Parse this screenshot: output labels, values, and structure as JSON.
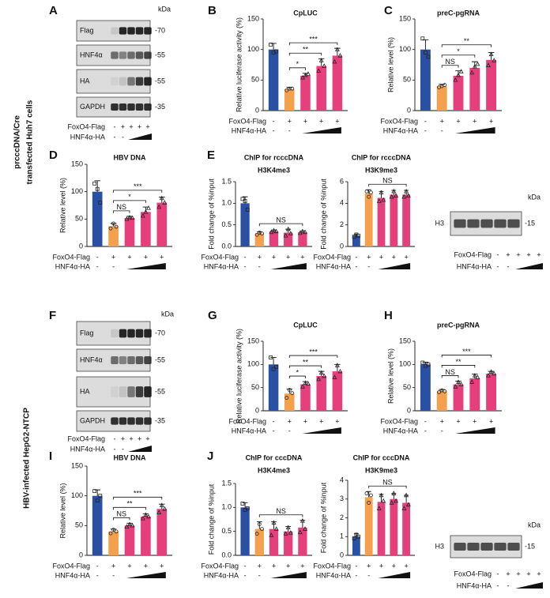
{
  "side_labels": [
    [
      "prcccDNA/Cre",
      "transfected Huh7 cells"
    ],
    [
      "HBV-infected HepG2-NTCP"
    ]
  ],
  "blots": [
    {
      "label": "A",
      "kda": "kDa",
      "bands": [
        {
          "name": "Flag",
          "marker": "-70"
        },
        {
          "name": "HNF4α",
          "marker": "-55"
        },
        {
          "name": "HA",
          "marker": "-55"
        },
        {
          "name": "GAPDH",
          "marker": "-35"
        }
      ],
      "conditions": [
        {
          "name": "FoxO4-Flag",
          "signs": [
            "-",
            "+",
            "+",
            "+",
            "+"
          ]
        },
        {
          "name": "HNF4α-HA",
          "signs": [
            "-",
            "-"
          ]
        }
      ]
    },
    {
      "kda": "kDa",
      "bands": [
        {
          "name": "H3",
          "marker": "-15"
        }
      ],
      "conditions": [
        {
          "name": "FoxO4-Flag",
          "signs": [
            "-",
            "+",
            "+",
            "+",
            "+"
          ]
        },
        {
          "name": "HNF4α-HA",
          "signs": [
            "-",
            "-"
          ]
        }
      ]
    },
    {
      "label": "F",
      "kda": "kDa",
      "bands": [
        {
          "name": "Flag",
          "marker": "-70"
        },
        {
          "name": "HNF4α",
          "marker": "-55"
        },
        {
          "name": "HA",
          "marker": "-55"
        },
        {
          "name": "GAPDH",
          "marker": "-35"
        }
      ],
      "conditions": [
        {
          "name": "FoxO4-Flag",
          "signs": [
            "-",
            "+",
            "+",
            "+",
            "+"
          ]
        },
        {
          "name": "HNF4α-HA",
          "signs": [
            "-",
            "-"
          ]
        }
      ]
    },
    {
      "kda": "kDa",
      "bands": [
        {
          "name": "H3",
          "marker": "-15"
        }
      ],
      "conditions": [
        {
          "name": "FoxO4-Flag",
          "signs": [
            "-",
            "+",
            "+",
            "+",
            "+"
          ]
        },
        {
          "name": "HNF4α-HA",
          "signs": [
            "-",
            "-"
          ]
        }
      ]
    }
  ],
  "chart_data": [
    {
      "type": "bar",
      "label": "B",
      "title": "CpLUC",
      "ylabel": "Relative luciferase activity (%)",
      "ylim": [
        0,
        150
      ],
      "yticks": [
        0,
        50,
        100,
        150
      ],
      "values": [
        100,
        35,
        57,
        73,
        90
      ],
      "errors": [
        10,
        3,
        4,
        12,
        12
      ],
      "points": [
        [
          108,
          95,
          97
        ],
        [
          33,
          36,
          36
        ],
        [
          54,
          58,
          60
        ],
        [
          65,
          82,
          73
        ],
        [
          80,
          100,
          90
        ]
      ],
      "colors": [
        "#2a50a3",
        "#f4a04c",
        "#e6407c",
        "#e6407c",
        "#e6407c"
      ],
      "conditions": [
        {
          "name": "FoxO4-Flag",
          "signs": [
            "-",
            "+",
            "+",
            "+",
            "+"
          ]
        },
        {
          "name": "HNF4α-HA",
          "signs": [
            "-",
            "-"
          ]
        }
      ],
      "annotations": [
        {
          "text": "*",
          "from": 1,
          "to": 2
        },
        {
          "text": "**",
          "from": 1,
          "to": 3
        },
        {
          "text": "***",
          "from": 1,
          "to": 4
        }
      ]
    },
    {
      "type": "bar",
      "label": "C",
      "title": "preC-pgRNA",
      "ylabel": "Relative level (%)",
      "ylim": [
        0,
        150
      ],
      "yticks": [
        0,
        50,
        100,
        150
      ],
      "values": [
        100,
        40,
        57,
        70,
        83
      ],
      "errors": [
        16,
        3,
        8,
        10,
        12
      ],
      "points": [
        [
          118,
          95,
          88
        ],
        [
          38,
          40,
          42
        ],
        [
          50,
          58,
          64
        ],
        [
          62,
          72,
          76
        ],
        [
          74,
          92,
          82
        ]
      ],
      "colors": [
        "#2a50a3",
        "#f4a04c",
        "#e6407c",
        "#e6407c",
        "#e6407c"
      ],
      "conditions": [
        {
          "name": "FoxO4-Flag",
          "signs": [
            "-",
            "+",
            "+",
            "+",
            "+"
          ]
        },
        {
          "name": "HNF4α-HA",
          "signs": [
            "-",
            "-"
          ]
        }
      ],
      "annotations": [
        {
          "text": "NS",
          "from": 1,
          "to": 2
        },
        {
          "text": "*",
          "from": 1,
          "to": 3
        },
        {
          "text": "**",
          "from": 1,
          "to": 4
        }
      ]
    },
    {
      "type": "bar",
      "label": "D",
      "title": "HBV DNA",
      "ylabel": "Relative level (%)",
      "ylim": [
        0,
        150
      ],
      "yticks": [
        0,
        50,
        100,
        150
      ],
      "values": [
        100,
        37,
        52,
        63,
        80
      ],
      "errors": [
        20,
        5,
        3,
        9,
        10
      ],
      "points": [
        [
          115,
          105,
          80
        ],
        [
          33,
          42,
          36
        ],
        [
          50,
          53,
          52
        ],
        [
          56,
          63,
          70
        ],
        [
          72,
          88,
          80
        ]
      ],
      "colors": [
        "#2a50a3",
        "#f4a04c",
        "#e6407c",
        "#e6407c",
        "#e6407c"
      ],
      "conditions": [
        {
          "name": "FoxO4-Flag",
          "signs": [
            "-",
            "+",
            "+",
            "+",
            "+"
          ]
        },
        {
          "name": "HNF4α-HA",
          "signs": [
            "-",
            "-"
          ]
        }
      ],
      "annotations": [
        {
          "text": "NS",
          "from": 1,
          "to": 2
        },
        {
          "text": "*",
          "from": 1,
          "to": 3
        },
        {
          "text": "***",
          "from": 1,
          "to": 4
        }
      ]
    },
    {
      "type": "bar",
      "label": "E",
      "title": "ChIP for rcccDNA",
      "subtitle": "H3K4me3",
      "ylabel": "Fold change of %input",
      "ylim": [
        0,
        1.5
      ],
      "yticks": [
        {
          "value": 0,
          "label": "0.0"
        },
        0.5,
        {
          "value": 1,
          "label": "1.0"
        },
        1.5
      ],
      "values": [
        1.0,
        0.3,
        0.35,
        0.32,
        0.33
      ],
      "errors": [
        0.15,
        0.04,
        0.03,
        0.08,
        0.03
      ],
      "points": [
        [
          1.1,
          1.05,
          0.85
        ],
        [
          0.27,
          0.32,
          0.3
        ],
        [
          0.33,
          0.37,
          0.35
        ],
        [
          0.25,
          0.4,
          0.3
        ],
        [
          0.31,
          0.35,
          0.33
        ]
      ],
      "colors": [
        "#2a50a3",
        "#f4a04c",
        "#e6407c",
        "#e6407c",
        "#e6407c"
      ],
      "conditions": [
        {
          "name": "FoxO4-Flag",
          "signs": [
            "-",
            "+",
            "+",
            "+",
            "+"
          ]
        },
        {
          "name": "HNF4α-HA",
          "signs": [
            "-",
            "-"
          ]
        }
      ],
      "annotations": [
        {
          "text": "NS",
          "from": 1,
          "to": 4
        }
      ]
    },
    {
      "type": "bar",
      "title": "ChIP for rcccDNA",
      "subtitle": "H3K9me3",
      "ylabel": "Fold change of %input",
      "ylim": [
        0,
        6
      ],
      "yticks": [
        0,
        2,
        4,
        6
      ],
      "values": [
        1,
        4.9,
        4.5,
        4.8,
        4.8
      ],
      "errors": [
        0.15,
        0.35,
        0.6,
        0.4,
        0.4
      ],
      "points": [
        [
          0.9,
          1.1,
          1.0
        ],
        [
          5.1,
          4.6,
          5.0
        ],
        [
          4.2,
          5.0,
          4.3
        ],
        [
          4.6,
          5.1,
          4.7
        ],
        [
          4.6,
          5.1,
          4.7
        ]
      ],
      "colors": [
        "#2a50a3",
        "#f4a04c",
        "#e6407c",
        "#e6407c",
        "#e6407c"
      ],
      "conditions": [
        {
          "name": "FoxO4-Flag",
          "signs": [
            "-",
            "+",
            "+",
            "+",
            "+"
          ]
        },
        {
          "name": "HNF4α-HA",
          "signs": [
            "-",
            "-"
          ]
        }
      ],
      "annotations": [
        {
          "text": "NS",
          "from": 1,
          "to": 4
        }
      ]
    },
    {
      "type": "bar",
      "label": "G",
      "title": "CpLUC",
      "ylabel": "Relative luciferase activity (%)",
      "ylim": [
        0,
        150
      ],
      "yticks": [
        0,
        50,
        100,
        150
      ],
      "values": [
        100,
        37,
        57,
        75,
        85
      ],
      "errors": [
        15,
        10,
        6,
        10,
        15
      ],
      "points": [
        [
          115,
          90,
          95
        ],
        [
          28,
          45,
          38
        ],
        [
          52,
          60,
          58
        ],
        [
          68,
          82,
          75
        ],
        [
          72,
          98,
          85
        ]
      ],
      "colors": [
        "#2a50a3",
        "#f4a04c",
        "#e6407c",
        "#e6407c",
        "#e6407c"
      ],
      "conditions": [
        {
          "name": "FoxO4-Flag",
          "signs": [
            "-",
            "+",
            "+",
            "+",
            "+"
          ]
        },
        {
          "name": "HNF4α-HA",
          "signs": [
            "-",
            "-"
          ]
        }
      ],
      "annotations": [
        {
          "text": "*",
          "from": 1,
          "to": 2
        },
        {
          "text": "**",
          "from": 1,
          "to": 3
        },
        {
          "text": "***",
          "from": 1,
          "to": 4
        }
      ]
    },
    {
      "type": "bar",
      "label": "H",
      "title": "preC-pgRNA",
      "ylabel": "Relative level (%)",
      "ylim": [
        0,
        150
      ],
      "yticks": [
        0,
        50,
        100,
        150
      ],
      "values": [
        100,
        42,
        57,
        70,
        80
      ],
      "errors": [
        5,
        4,
        7,
        9,
        5
      ],
      "points": [
        [
          104,
          97,
          100
        ],
        [
          40,
          44,
          42
        ],
        [
          52,
          62,
          57
        ],
        [
          62,
          76,
          72
        ],
        [
          76,
          84,
          80
        ]
      ],
      "colors": [
        "#2a50a3",
        "#f4a04c",
        "#e6407c",
        "#e6407c",
        "#e6407c"
      ],
      "conditions": [
        {
          "name": "FoxO4-Flag",
          "signs": [
            "-",
            "+",
            "+",
            "+",
            "+"
          ]
        },
        {
          "name": "HNF4α-HA",
          "signs": [
            "-",
            "-"
          ]
        }
      ],
      "annotations": [
        {
          "text": "NS",
          "from": 1,
          "to": 2
        },
        {
          "text": "**",
          "from": 1,
          "to": 3
        },
        {
          "text": "***",
          "from": 1,
          "to": 4
        }
      ]
    },
    {
      "type": "bar",
      "label": "I",
      "title": "HBV DNA",
      "ylabel": "Relative level (%)",
      "ylim": [
        0,
        150
      ],
      "yticks": [
        0,
        50,
        100,
        150
      ],
      "values": [
        100,
        40,
        50,
        65,
        78
      ],
      "errors": [
        10,
        4,
        4,
        5,
        8
      ],
      "points": [
        [
          108,
          92,
          100
        ],
        [
          37,
          43,
          40
        ],
        [
          48,
          52,
          50
        ],
        [
          62,
          68,
          65
        ],
        [
          72,
          84,
          78
        ]
      ],
      "colors": [
        "#2a50a3",
        "#f4a04c",
        "#e6407c",
        "#e6407c",
        "#e6407c"
      ],
      "conditions": [
        {
          "name": "FoxO4-Flag",
          "signs": [
            "-",
            "+",
            "+",
            "+",
            "+"
          ]
        },
        {
          "name": "HNF4α-HA",
          "signs": [
            "-",
            "-"
          ]
        }
      ],
      "annotations": [
        {
          "text": "NS",
          "from": 1,
          "to": 2
        },
        {
          "text": "**",
          "from": 1,
          "to": 3
        },
        {
          "text": "***",
          "from": 1,
          "to": 4
        }
      ]
    },
    {
      "type": "bar",
      "label": "J",
      "title": "ChIP for cccDNA",
      "subtitle": "H3K4me3",
      "ylabel": "Fold change of %input",
      "ylim": [
        0,
        1.5
      ],
      "yticks": [
        {
          "value": 0,
          "label": "0.0"
        },
        0.5,
        {
          "value": 1,
          "label": "1.0"
        },
        1.5
      ],
      "values": [
        1.0,
        0.55,
        0.55,
        0.5,
        0.58
      ],
      "errors": [
        0.1,
        0.15,
        0.15,
        0.1,
        0.15
      ],
      "points": [
        [
          1.08,
          0.95,
          0.98
        ],
        [
          0.45,
          0.65,
          0.55
        ],
        [
          0.42,
          0.68,
          0.55
        ],
        [
          0.45,
          0.58,
          0.47
        ],
        [
          0.48,
          0.72,
          0.55
        ]
      ],
      "colors": [
        "#2a50a3",
        "#f4a04c",
        "#e6407c",
        "#e6407c",
        "#e6407c"
      ],
      "conditions": [
        {
          "name": "FoxO4-Flag",
          "signs": [
            "-",
            "+",
            "+",
            "+",
            "+"
          ]
        },
        {
          "name": "HNF4α-HA",
          "signs": [
            "-",
            "-"
          ]
        }
      ],
      "annotations": [
        {
          "text": "NS",
          "from": 1,
          "to": 4
        }
      ]
    },
    {
      "type": "bar",
      "title": "ChIP for cccDNA",
      "subtitle": "H3K9me3",
      "ylabel": "Fold change of %input",
      "ylim": [
        0,
        4
      ],
      "yticks": [
        0,
        1,
        2,
        3,
        4
      ],
      "values": [
        1.0,
        3.1,
        2.85,
        3.0,
        2.8
      ],
      "errors": [
        0.15,
        0.3,
        0.4,
        0.3,
        0.4
      ],
      "points": [
        [
          0.9,
          1.1,
          1.0
        ],
        [
          3.3,
          2.8,
          3.2
        ],
        [
          2.5,
          3.2,
          2.9
        ],
        [
          2.8,
          3.3,
          2.9
        ],
        [
          2.5,
          3.2,
          2.7
        ]
      ],
      "colors": [
        "#2a50a3",
        "#f4a04c",
        "#e6407c",
        "#e6407c",
        "#e6407c"
      ],
      "conditions": [
        {
          "name": "FoxO4-Flag",
          "signs": [
            "-",
            "+",
            "+",
            "+",
            "+"
          ]
        },
        {
          "name": "HNF4α-HA",
          "signs": [
            "-",
            "-"
          ]
        }
      ],
      "annotations": [
        {
          "text": "NS",
          "from": 1,
          "to": 4
        }
      ]
    }
  ]
}
